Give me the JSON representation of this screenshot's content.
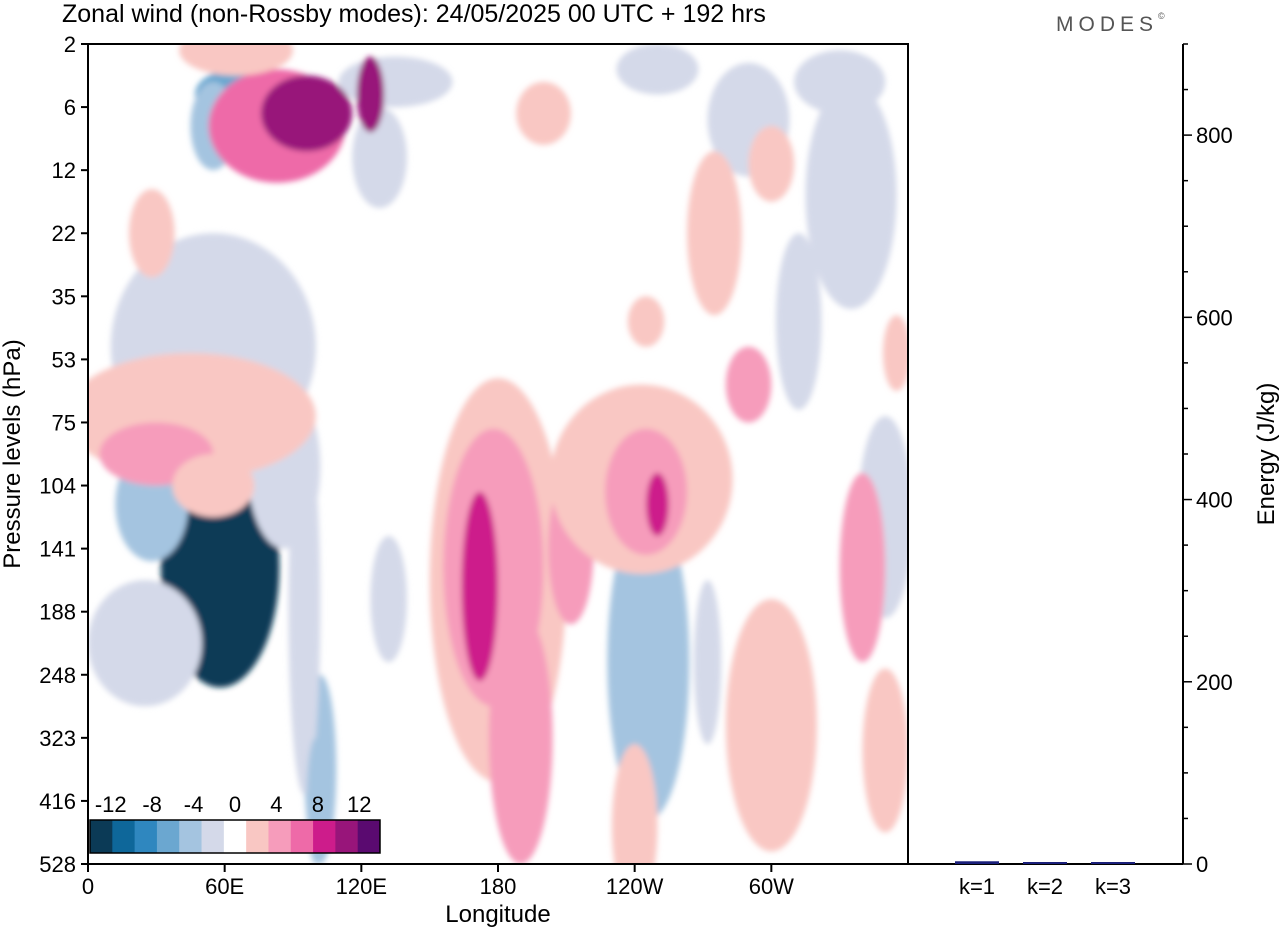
{
  "chart_data": {
    "type": "heatmap",
    "title": "Zonal wind (non-Rossby modes):  24/05/2025  00 UTC  + 192 hrs",
    "brand": "MODES",
    "brand_mark": "©",
    "xlabel": "Longitude",
    "ylabel": "Pressure levels (hPa)",
    "x_ticks": [
      {
        "lon": 0,
        "label": "0"
      },
      {
        "lon": 60,
        "label": "60E"
      },
      {
        "lon": 120,
        "label": "120E"
      },
      {
        "lon": 180,
        "label": "180"
      },
      {
        "lon": 240,
        "label": "120W"
      },
      {
        "lon": 300,
        "label": "60W"
      }
    ],
    "xlim": [
      0,
      360
    ],
    "y_levels": [
      "2",
      "6",
      "12",
      "22",
      "35",
      "53",
      "75",
      "104",
      "141",
      "188",
      "248",
      "323",
      "416",
      "528"
    ],
    "colorbar": {
      "labels": [
        "-12",
        "-8",
        "-4",
        "0",
        "4",
        "8",
        "12"
      ],
      "bounds": [
        -14,
        -12,
        -10,
        -8,
        -6,
        -4,
        -2,
        2,
        4,
        6,
        8,
        10,
        12,
        14
      ],
      "colors": [
        "#0b3a56",
        "#0e679a",
        "#2f87bf",
        "#6ba7d0",
        "#a4c4e0",
        "#d4d9e9",
        "#ffffff",
        "#f9c7c3",
        "#f69cbb",
        "#ee6aa8",
        "#cd1c8b",
        "#98157a",
        "#5a0a70"
      ]
    },
    "blobs": [
      {
        "x": 58,
        "y": 8.3,
        "rx": 26,
        "ry": 1.9,
        "v": -14
      },
      {
        "x": 28,
        "y": 7.3,
        "rx": 16,
        "ry": 0.9,
        "v": -6
      },
      {
        "x": 102,
        "y": 11.5,
        "rx": 7,
        "ry": 1.5,
        "v": -6
      },
      {
        "x": 95,
        "y": 8.9,
        "rx": 7,
        "ry": 3.0,
        "v": -3
      },
      {
        "x": 100,
        "y": 12.0,
        "rx": 4,
        "ry": 1.0,
        "v": -6
      },
      {
        "x": 86,
        "y": 6.7,
        "rx": 16,
        "ry": 1.3,
        "v": -4
      },
      {
        "x": 25,
        "y": 9.5,
        "rx": 25,
        "ry": 1.0,
        "v": -3
      },
      {
        "x": 55,
        "y": 4.8,
        "rx": 45,
        "ry": 1.8,
        "v": -3
      },
      {
        "x": 75,
        "y": 1.0,
        "rx": 22,
        "ry": 0.6,
        "v": -5
      },
      {
        "x": 65,
        "y": 0.8,
        "rx": 18,
        "ry": 0.4,
        "v": -8
      },
      {
        "x": 128,
        "y": 1.8,
        "rx": 12,
        "ry": 0.8,
        "v": -4
      },
      {
        "x": 135,
        "y": 0.6,
        "rx": 25,
        "ry": 0.4,
        "v": -3
      },
      {
        "x": 250,
        "y": 0.4,
        "rx": 18,
        "ry": 0.4,
        "v": -3
      },
      {
        "x": 290,
        "y": 1.2,
        "rx": 18,
        "ry": 0.9,
        "v": -3
      },
      {
        "x": 330,
        "y": 0.6,
        "rx": 20,
        "ry": 0.5,
        "v": -3
      },
      {
        "x": 335,
        "y": 2.4,
        "rx": 20,
        "ry": 1.8,
        "v": -3
      },
      {
        "x": 247,
        "y": 9.9,
        "rx": 12,
        "ry": 1.4,
        "v": -12
      },
      {
        "x": 246,
        "y": 9.8,
        "rx": 18,
        "ry": 2.5,
        "v": -5
      },
      {
        "x": 350,
        "y": 7.5,
        "rx": 12,
        "ry": 1.6,
        "v": -3
      },
      {
        "x": 132,
        "y": 8.8,
        "rx": 8,
        "ry": 1.0,
        "v": -3
      },
      {
        "x": 272,
        "y": 9.8,
        "rx": 6,
        "ry": 1.3,
        "v": -3
      },
      {
        "x": 312,
        "y": 4.4,
        "rx": 10,
        "ry": 1.4,
        "v": -3
      },
      {
        "x": 55,
        "y": 1.3,
        "rx": 10,
        "ry": 0.7,
        "v": -6
      },
      {
        "x": 83,
        "y": 1.3,
        "rx": 30,
        "ry": 0.9,
        "v": 6
      },
      {
        "x": 96,
        "y": 1.1,
        "rx": 20,
        "ry": 0.6,
        "v": 10
      },
      {
        "x": 124,
        "y": 0.8,
        "rx": 6,
        "ry": 0.6,
        "v": 10
      },
      {
        "x": 65,
        "y": 0.1,
        "rx": 25,
        "ry": 0.4,
        "v": 3
      },
      {
        "x": 180,
        "y": 8.5,
        "rx": 30,
        "ry": 3.2,
        "v": 3
      },
      {
        "x": 178,
        "y": 8.3,
        "rx": 22,
        "ry": 2.2,
        "v": 5
      },
      {
        "x": 172,
        "y": 8.6,
        "rx": 8,
        "ry": 1.5,
        "v": 9
      },
      {
        "x": 190,
        "y": 11.0,
        "rx": 14,
        "ry": 2.0,
        "v": 4
      },
      {
        "x": 212,
        "y": 8.0,
        "rx": 10,
        "ry": 1.2,
        "v": 5
      },
      {
        "x": 243,
        "y": 6.9,
        "rx": 40,
        "ry": 1.5,
        "v": 3
      },
      {
        "x": 245,
        "y": 7.1,
        "rx": 18,
        "ry": 1.0,
        "v": 5
      },
      {
        "x": 250,
        "y": 7.3,
        "rx": 5,
        "ry": 0.5,
        "v": 8
      },
      {
        "x": 290,
        "y": 5.4,
        "rx": 10,
        "ry": 0.6,
        "v": 5
      },
      {
        "x": 340,
        "y": 8.3,
        "rx": 10,
        "ry": 1.5,
        "v": 4
      },
      {
        "x": 45,
        "y": 5.9,
        "rx": 55,
        "ry": 1.0,
        "v": 3
      },
      {
        "x": 30,
        "y": 6.5,
        "rx": 25,
        "ry": 0.5,
        "v": 5
      },
      {
        "x": 55,
        "y": 7.0,
        "rx": 18,
        "ry": 0.5,
        "v": 3
      },
      {
        "x": 275,
        "y": 3.0,
        "rx": 12,
        "ry": 1.3,
        "v": 3
      },
      {
        "x": 200,
        "y": 1.1,
        "rx": 12,
        "ry": 0.5,
        "v": 3
      },
      {
        "x": 300,
        "y": 1.9,
        "rx": 10,
        "ry": 0.6,
        "v": 3
      },
      {
        "x": 245,
        "y": 4.4,
        "rx": 8,
        "ry": 0.4,
        "v": 3
      },
      {
        "x": 355,
        "y": 4.9,
        "rx": 6,
        "ry": 0.6,
        "v": 3
      },
      {
        "x": 28,
        "y": 3.0,
        "rx": 10,
        "ry": 0.7,
        "v": 3
      },
      {
        "x": 300,
        "y": 10.8,
        "rx": 20,
        "ry": 2.0,
        "v": 3
      },
      {
        "x": 240,
        "y": 12.4,
        "rx": 10,
        "ry": 1.3,
        "v": 3
      },
      {
        "x": 350,
        "y": 11.2,
        "rx": 10,
        "ry": 1.3,
        "v": 3
      }
    ]
  },
  "energy_panel": {
    "ylabel": "Energy (J/kg)",
    "ylim": [
      0,
      900
    ],
    "y_ticks": [
      0,
      200,
      400,
      600,
      800
    ],
    "bars": [
      {
        "label": "k=1",
        "value": 3
      },
      {
        "label": "k=2",
        "value": 2
      },
      {
        "label": "k=3",
        "value": 1
      }
    ],
    "bar_color": "#1a1f7a"
  }
}
